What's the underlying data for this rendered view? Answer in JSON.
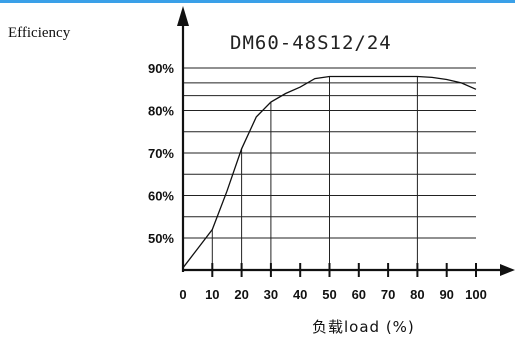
{
  "accent_color": "#3aa0e8",
  "chart_data": {
    "type": "line",
    "title": "DM60-48S12/24",
    "ylabel": "Efficiency",
    "xlabel": "负载load (%)",
    "xlim": [
      0,
      100
    ],
    "ylim": [
      43,
      92
    ],
    "x_ticks": [
      {
        "label": "0",
        "value": 0
      },
      {
        "label": "10",
        "value": 10
      },
      {
        "label": "20",
        "value": 20
      },
      {
        "label": "30",
        "value": 30
      },
      {
        "label": "40",
        "value": 40
      },
      {
        "label": "50",
        "value": 50
      },
      {
        "label": "60",
        "value": 60
      },
      {
        "label": "70",
        "value": 70
      },
      {
        "label": "80",
        "value": 80
      },
      {
        "label": "90",
        "value": 90
      },
      {
        "label": "100",
        "value": 100
      }
    ],
    "y_ticks": [
      {
        "label": "90%",
        "value": 90
      },
      {
        "label": "80%",
        "value": 80
      },
      {
        "label": "70%",
        "value": 70
      },
      {
        "label": "60%",
        "value": 60
      },
      {
        "label": "50%",
        "value": 50
      }
    ],
    "h_gridlines": [
      50,
      55,
      60,
      65,
      70,
      75,
      80,
      83.5,
      86.5,
      90
    ],
    "v_droplines": [
      10,
      20,
      30,
      50,
      80
    ],
    "grid": true,
    "x": [
      0,
      5,
      10,
      15,
      20,
      25,
      30,
      35,
      40,
      45,
      50,
      55,
      60,
      65,
      70,
      75,
      80,
      85,
      90,
      95,
      100
    ],
    "y": [
      43,
      47.5,
      52,
      61,
      71,
      78.5,
      82,
      84,
      85.5,
      87.5,
      88,
      88,
      88,
      88,
      88,
      88,
      88,
      87.8,
      87.3,
      86.5,
      85
    ]
  }
}
